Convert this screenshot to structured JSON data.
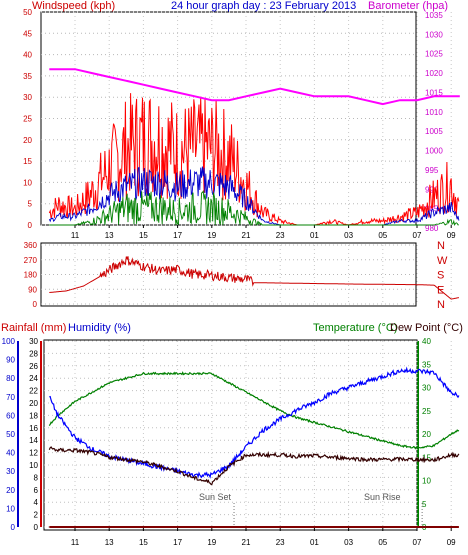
{
  "header": {
    "left": "Windspeed (kph)",
    "center": "24 hour graph day : 23 February 2013",
    "right": "Barometer (hpa)"
  },
  "colors": {
    "wind": "#ff0000",
    "gust_avg": "#0000cc",
    "wind_min": "#008000",
    "barometer": "#ff00ff",
    "direction": "#cc0000",
    "humidity": "#0000ff",
    "temperature": "#008000",
    "dewpoint": "#330000",
    "rainfall": "#800000",
    "axis_rain": "#cc0000",
    "axis_humidity": "#0000cc",
    "axis_temp": "#008000"
  },
  "labels": {
    "rainfall": "Rainfall (mm)",
    "humidity": "Humidity (%)",
    "temperature": "Temperature (°C)",
    "dewpoint": "Dew Point (°C)",
    "sunset": "Sun Set",
    "sunrise": "Sun Rise"
  },
  "chart_data": [
    {
      "type": "line",
      "xlabels": [
        "11",
        "13",
        "15",
        "17",
        "19",
        "21",
        "23",
        "01",
        "03",
        "05",
        "07",
        "09"
      ],
      "x_hours": [
        0,
        2,
        4,
        6,
        8,
        10,
        12,
        14,
        16,
        18,
        20,
        22
      ],
      "y_left_ticks": [
        0,
        5,
        10,
        15,
        20,
        25,
        30,
        35,
        40,
        45,
        50
      ],
      "y_right_ticks": [
        980,
        985,
        990,
        995,
        1000,
        1005,
        1010,
        1015,
        1020,
        1025,
        1030,
        1035
      ],
      "series": [
        {
          "key": "barometer",
          "axis": "right",
          "x": [
            -1.5,
            0,
            1,
            2,
            3,
            4,
            5,
            6,
            7,
            8,
            9,
            10,
            11,
            12,
            13,
            14,
            15,
            16,
            17,
            18,
            19,
            20,
            21,
            22.5
          ],
          "values": [
            1021,
            1021,
            1020,
            1019,
            1018,
            1017,
            1016,
            1015,
            1014,
            1013,
            1013,
            1014,
            1015,
            1016,
            1015,
            1014,
            1014,
            1014,
            1013,
            1012,
            1013,
            1013,
            1014,
            1014
          ]
        },
        {
          "key": "wind",
          "axis": "left",
          "x": [
            -1.5,
            -1,
            0,
            1,
            2,
            3,
            4,
            5,
            6,
            7,
            8,
            9,
            10,
            11,
            12,
            13,
            14,
            15,
            16,
            17,
            18,
            19,
            20,
            21,
            22,
            22.5
          ],
          "values": [
            3,
            5,
            4,
            8,
            14,
            19,
            21,
            21,
            18,
            19,
            19,
            17,
            10,
            3,
            1,
            0,
            0,
            1,
            0,
            1,
            1,
            2,
            3,
            7,
            10,
            4
          ]
        },
        {
          "key": "gust_avg",
          "axis": "left",
          "x": [
            -1.5,
            -1,
            0,
            1,
            2,
            3,
            4,
            5,
            6,
            7,
            8,
            9,
            10,
            11,
            12,
            13,
            14,
            15,
            16,
            17,
            18,
            19,
            20,
            21,
            22,
            22.5
          ],
          "values": [
            1,
            2,
            2,
            4,
            7,
            9,
            10,
            10,
            9,
            10,
            10,
            9,
            6,
            1,
            0,
            0,
            0,
            0,
            0,
            0,
            0,
            1,
            1,
            3,
            4,
            1
          ]
        },
        {
          "key": "wind_min",
          "axis": "left",
          "x": [
            -1.5,
            -1,
            0,
            1,
            2,
            3,
            4,
            5,
            6,
            7,
            8,
            9,
            10,
            11,
            12,
            13,
            14,
            15,
            16,
            17,
            18,
            19,
            20,
            21,
            22,
            22.5
          ],
          "values": [
            0,
            0,
            0,
            1,
            3,
            5,
            5,
            5,
            4,
            5,
            5,
            4,
            2,
            0,
            0,
            0,
            0,
            0,
            0,
            0,
            0,
            0,
            0,
            0,
            1,
            0
          ]
        }
      ]
    },
    {
      "type": "line",
      "ylabels": [
        "360",
        "270",
        "180",
        "90",
        "0"
      ],
      "yletters": [
        "N",
        "W",
        "S",
        "E",
        "N"
      ],
      "series": [
        {
          "key": "direction",
          "x": [
            -1.5,
            -0.5,
            0.5,
            1.5,
            2.5,
            3,
            4,
            5,
            6,
            7,
            8,
            9,
            10,
            10.5,
            12,
            14,
            16,
            18,
            20,
            21,
            22,
            22.5
          ],
          "values": [
            70,
            80,
            110,
            170,
            240,
            270,
            230,
            200,
            210,
            180,
            175,
            160,
            150,
            130,
            128,
            125,
            122,
            120,
            118,
            115,
            30,
            40
          ]
        }
      ]
    },
    {
      "type": "line",
      "rain_ticks": [
        0,
        2,
        4,
        6,
        8,
        10,
        12,
        14,
        16,
        18,
        20,
        22,
        24,
        26,
        28,
        30
      ],
      "humidity_ticks": [
        0,
        10,
        20,
        30,
        40,
        50,
        60,
        70,
        80,
        90,
        100
      ],
      "temp_ticks": [
        0,
        5,
        10,
        15,
        20,
        25,
        30,
        35,
        40
      ],
      "series": [
        {
          "key": "humidity",
          "axis": "humidity",
          "x": [
            -1.5,
            -1,
            0,
            1,
            2,
            3,
            4,
            5,
            6,
            7,
            8,
            9,
            10,
            11,
            12,
            13,
            14,
            15,
            16,
            17,
            18,
            19,
            20,
            21,
            22,
            22.5
          ],
          "values": [
            70,
            60,
            48,
            42,
            38,
            36,
            34,
            32,
            30,
            28,
            28,
            33,
            43,
            52,
            58,
            63,
            67,
            72,
            75,
            78,
            81,
            84,
            84,
            83,
            72,
            70
          ]
        },
        {
          "key": "temperature",
          "axis": "temp",
          "x": [
            -1.5,
            -1,
            0,
            1,
            2,
            3,
            4,
            5,
            6,
            7,
            8,
            9,
            10,
            11,
            12,
            13,
            14,
            15,
            16,
            17,
            18,
            19,
            20,
            21,
            22,
            22.5
          ],
          "values": [
            22,
            24,
            27,
            29,
            31,
            32,
            33,
            33,
            33,
            33,
            33,
            31,
            29,
            27,
            25,
            23.5,
            22.5,
            21.5,
            20.5,
            19.5,
            18.5,
            17.5,
            17,
            17.5,
            20,
            21
          ]
        },
        {
          "key": "dewpoint",
          "axis": "temp",
          "x": [
            -1.5,
            -1,
            0,
            1,
            2,
            3,
            4,
            5,
            6,
            7,
            8,
            9,
            10,
            11,
            12,
            13,
            14,
            15,
            16,
            17,
            18,
            19,
            20,
            21,
            22,
            22.5
          ],
          "values": [
            17,
            16.5,
            16.5,
            16,
            15,
            14.5,
            14,
            13,
            12,
            10.5,
            9.5,
            13,
            15.5,
            15.5,
            15.5,
            15.2,
            15.3,
            15,
            14.8,
            14.5,
            14.5,
            14.6,
            14.5,
            14.4,
            15.5,
            15.5
          ]
        },
        {
          "key": "rainfall",
          "axis": "rain",
          "x": [
            -1.5,
            22.5
          ],
          "values": [
            0,
            0
          ]
        }
      ],
      "markers": [
        {
          "label_key": "sunset",
          "hour": 9.3
        },
        {
          "label_key": "sunrise",
          "hour": 20.3
        }
      ]
    }
  ]
}
